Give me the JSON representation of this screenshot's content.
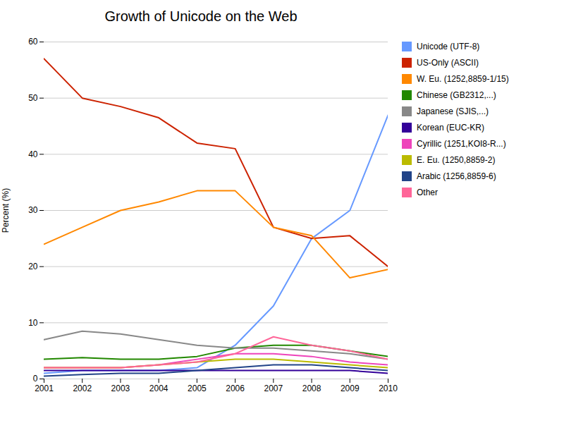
{
  "chart_data": {
    "type": "line",
    "title": "Growth of Unicode on the Web",
    "ylabel": "Percent (%)",
    "x": [
      2001,
      2002,
      2003,
      2004,
      2005,
      2006,
      2007,
      2008,
      2009,
      2010
    ],
    "series": [
      {
        "name": "Unicode (UTF-8)",
        "color": "#6699FF",
        "values": [
          1.0,
          1.5,
          1.5,
          1.5,
          2.0,
          6.0,
          13.0,
          25.0,
          30.0,
          47.0
        ]
      },
      {
        "name": "US-Only (ASCII)",
        "color": "#CC2200",
        "values": [
          57.0,
          50.0,
          48.5,
          46.5,
          42.0,
          41.0,
          27.0,
          25.0,
          25.5,
          20.0
        ]
      },
      {
        "name": "W. Eu. (1252,8859-1/15)",
        "color": "#FF8800",
        "values": [
          24.0,
          27.0,
          30.0,
          31.5,
          33.5,
          33.5,
          27.0,
          25.5,
          18.0,
          19.5
        ]
      },
      {
        "name": "Chinese (GB2312,...)",
        "color": "#228800",
        "values": [
          3.5,
          3.8,
          3.5,
          3.5,
          4.0,
          5.5,
          6.0,
          6.0,
          5.0,
          4.0
        ]
      },
      {
        "name": "Japanese (SJIS,...)",
        "color": "#888888",
        "values": [
          7.0,
          8.5,
          8.0,
          7.0,
          6.0,
          5.5,
          5.5,
          5.0,
          4.5,
          3.5
        ]
      },
      {
        "name": "Korean (EUC-KR)",
        "color": "#330099",
        "values": [
          1.5,
          1.5,
          1.5,
          1.5,
          1.5,
          1.5,
          1.5,
          1.5,
          1.5,
          1.0
        ]
      },
      {
        "name": "Cyrillic (1251,KOI8-R...)",
        "color": "#EE44BB",
        "values": [
          2.0,
          2.0,
          2.0,
          2.5,
          3.5,
          4.5,
          4.5,
          4.0,
          3.0,
          2.5
        ]
      },
      {
        "name": "E. Eu. (1250,8859-2)",
        "color": "#BBBB00",
        "values": [
          2.0,
          2.0,
          2.0,
          2.5,
          3.0,
          3.5,
          3.5,
          3.0,
          2.5,
          2.0
        ]
      },
      {
        "name": "Arabic (1256,8859-6)",
        "color": "#224488",
        "values": [
          0.5,
          0.8,
          1.0,
          1.0,
          1.5,
          2.0,
          2.5,
          2.5,
          2.0,
          1.5
        ]
      },
      {
        "name": "Other",
        "color": "#FF6699",
        "values": [
          2.0,
          2.0,
          2.0,
          2.5,
          3.0,
          4.5,
          7.5,
          6.0,
          5.0,
          3.5
        ]
      }
    ],
    "xlim": [
      2001,
      2010
    ],
    "xticks": [
      2001,
      2002,
      2003,
      2004,
      2005,
      2006,
      2007,
      2008,
      2009,
      2010
    ],
    "ylim": [
      0,
      60
    ],
    "yticks": [
      0,
      10,
      20,
      30,
      40,
      50,
      60
    ],
    "grid": "y",
    "legend": "right"
  }
}
